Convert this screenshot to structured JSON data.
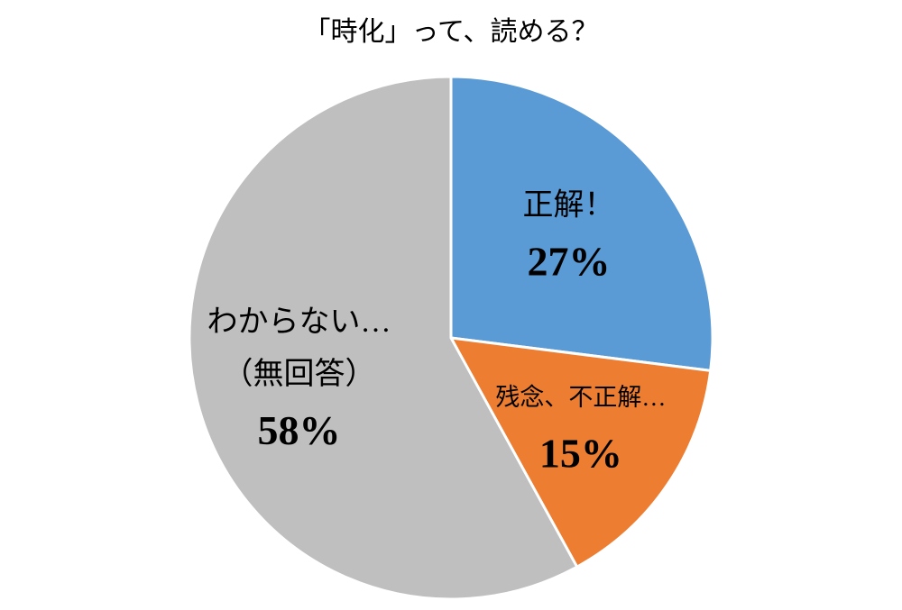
{
  "chart_data": {
    "type": "pie",
    "title": "「時化」って、読める？",
    "categories": [
      [
        "正解！"
      ],
      [
        "残念、不正解…"
      ],
      [
        "わからない…",
        "（無回答）"
      ]
    ],
    "values": [
      27,
      15,
      58
    ],
    "value_labels": [
      "27%",
      "15%",
      "58%"
    ],
    "colors": [
      "#5b9bd5",
      "#ed7d31",
      "#bfbfbf"
    ]
  }
}
